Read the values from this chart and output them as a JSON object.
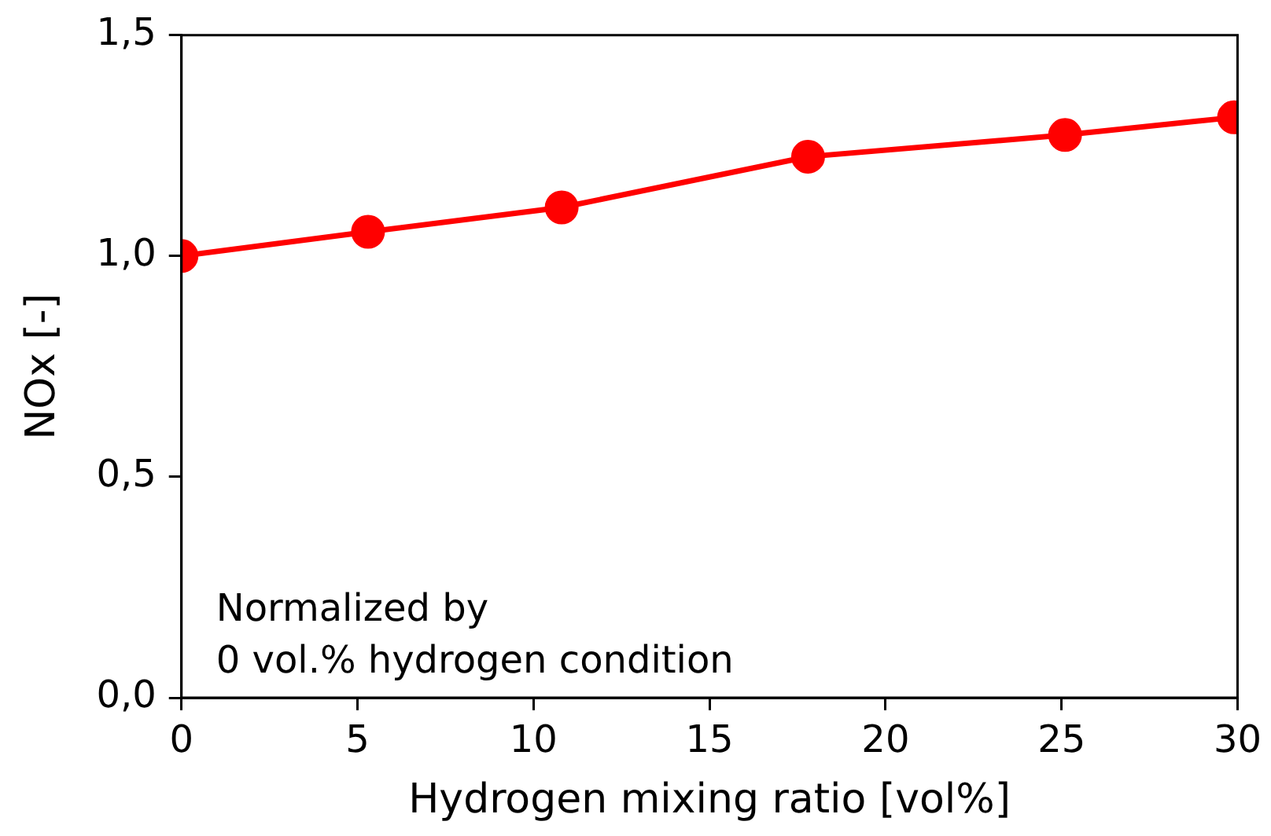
{
  "chart_data": {
    "type": "line",
    "xlabel": "Hydrogen mixing ratio [vol%]",
    "ylabel": "NOx [-]",
    "x": [
      0,
      5.3,
      10.8,
      17.8,
      25.1,
      29.9
    ],
    "series": [
      {
        "color": "#ff0000",
        "values": [
          1.0,
          1.055,
          1.11,
          1.225,
          1.274,
          1.314
        ]
      }
    ],
    "xlim": [
      0,
      30
    ],
    "xticks": [
      0,
      5,
      10,
      15,
      20,
      25,
      30
    ],
    "ylim": [
      0,
      1.5
    ],
    "yticks": [
      {
        "value": 0,
        "label": "0,0"
      },
      {
        "value": 0.5,
        "label": "0,5"
      },
      {
        "value": 1,
        "label": "1,0"
      },
      {
        "value": 1.5,
        "label": "1,5"
      }
    ],
    "grid": false,
    "legend": false,
    "marker": "circle",
    "line_style": "solid",
    "annotations": [
      "Normalized by\n0 vol.% hydrogen condition"
    ]
  }
}
